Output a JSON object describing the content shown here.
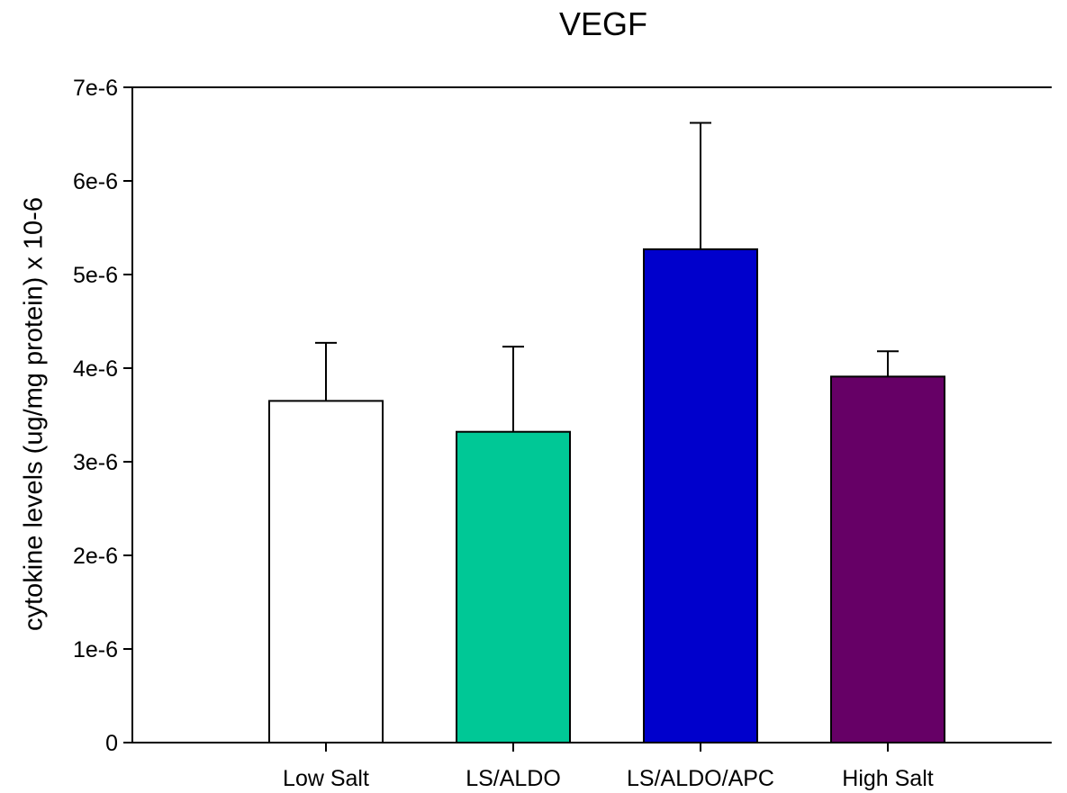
{
  "chart_data": {
    "type": "bar",
    "title": "VEGF",
    "xlabel": "",
    "ylabel": "cytokine levels (ug/mg protein) x 10-6",
    "categories": [
      "Low Salt",
      "LS/ALDO",
      "LS/ALDO/APC",
      "High Salt"
    ],
    "values": [
      3.65e-06,
      3.32e-06,
      5.27e-06,
      3.91e-06
    ],
    "error_upper": [
      4.27e-06,
      4.23e-06,
      6.62e-06,
      4.18e-06
    ],
    "colors": [
      "#ffffff",
      "#00c896",
      "#0000cc",
      "#660066"
    ],
    "ylim": [
      0,
      7e-06
    ],
    "yticks": [
      0,
      1e-06,
      2e-06,
      3e-06,
      4e-06,
      5e-06,
      6e-06,
      7e-06
    ],
    "ytick_labels": [
      "0",
      "1e-6",
      "2e-6",
      "3e-6",
      "4e-6",
      "5e-6",
      "6e-6",
      "7e-6"
    ],
    "grid": false,
    "legend": "none"
  }
}
